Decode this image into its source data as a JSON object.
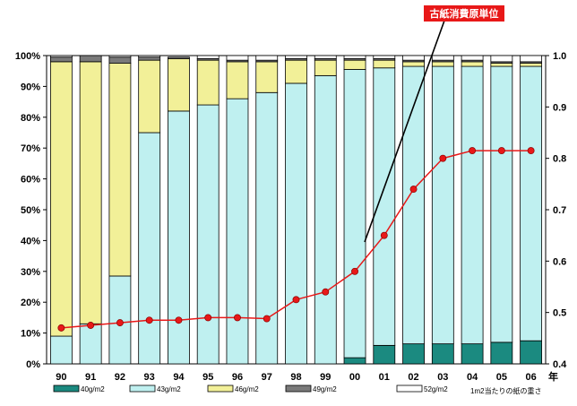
{
  "chart_data": {
    "type": "bar",
    "stacked": true,
    "categories": [
      "90",
      "91",
      "92",
      "93",
      "94",
      "95",
      "96",
      "97",
      "98",
      "99",
      "00",
      "01",
      "02",
      "03",
      "04",
      "05",
      "06"
    ],
    "x_unit": "年",
    "ylim_left": [
      0,
      100
    ],
    "left_ticks": [
      "0%",
      "10%",
      "20%",
      "30%",
      "40%",
      "50%",
      "60%",
      "70%",
      "80%",
      "90%",
      "100%"
    ],
    "ylim_right": [
      0.4,
      1.0
    ],
    "right_ticks": [
      "0.4",
      "0.5",
      "0.6",
      "0.7",
      "0.8",
      "0.9",
      "1.0"
    ],
    "series": [
      {
        "name": "40g/m2",
        "color": "#1b8a80",
        "values": [
          0,
          0,
          0,
          0,
          0,
          0,
          0,
          0,
          0,
          0,
          2,
          6,
          6.5,
          6.5,
          6.5,
          7,
          7.5
        ]
      },
      {
        "name": "43g/m2",
        "color": "#bff0f0",
        "values": [
          9,
          13,
          28.5,
          75,
          82,
          84,
          86,
          88,
          91,
          93.5,
          93.5,
          90,
          90,
          90,
          90,
          89.5,
          89
        ]
      },
      {
        "name": "46g/m2",
        "color": "#f2f098",
        "values": [
          89,
          85,
          69,
          23.5,
          17,
          14.5,
          12,
          10,
          7.5,
          5,
          3,
          2.5,
          1.5,
          1.5,
          1.5,
          1,
          1
        ]
      },
      {
        "name": "49g/m2",
        "color": "#7a7a7a",
        "values": [
          1.5,
          2,
          2,
          1,
          0.5,
          0.5,
          0.5,
          0.5,
          0.5,
          0.5,
          0.5,
          0.5,
          0.5,
          0.5,
          0.5,
          0.5,
          0.5
        ]
      },
      {
        "name": "52g/m2",
        "color": "#ffffff",
        "values": [
          0.5,
          0,
          0.5,
          0.5,
          0,
          1,
          1.5,
          1.5,
          1,
          1,
          1,
          1,
          1.5,
          1.5,
          1.5,
          2,
          2
        ]
      }
    ],
    "line": {
      "name": "古紙消費原単位",
      "color": "#e81818",
      "axis": "right",
      "values": [
        0.47,
        0.475,
        0.48,
        0.485,
        0.485,
        0.49,
        0.49,
        0.488,
        0.525,
        0.54,
        0.58,
        0.65,
        0.74,
        0.8,
        0.815,
        0.815,
        0.815
      ]
    },
    "annotation": "古紙消費原単位",
    "legend_note": "1m2当たりの紙の重さ",
    "grid": false,
    "legend_placement": "bottom"
  }
}
